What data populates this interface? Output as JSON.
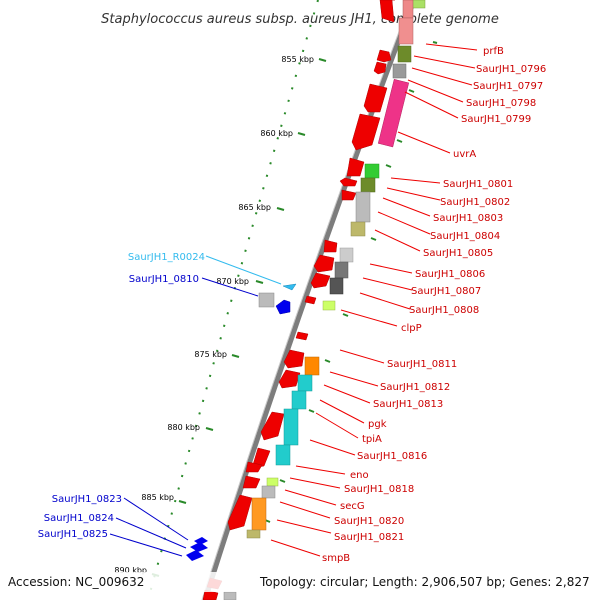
{
  "title": "Staphylococcus aureus subsp. aureus JH1, complete genome",
  "footer": {
    "accession": "Accession: NC_009632",
    "topology": "Topology: circular; Length: 2,906,507 bp; Genes: 2,827"
  },
  "colors": {
    "backbone": "#7a7a7a",
    "tick": "#2a8a2a",
    "forward_strand": "#ee0000",
    "reverse_strand": "#0000ee",
    "rna": "#33bbee",
    "forward_label_line": "#ee0000"
  },
  "scale_labels": [
    "855 kbp",
    "860 kbp",
    "865 kbp",
    "870 kbp",
    "875 kbp",
    "880 kbp",
    "885 kbp",
    "890 kbp"
  ],
  "right_labels": [
    "prfB",
    "SaurJH1_0796",
    "SaurJH1_0797",
    "SaurJH1_0798",
    "SaurJH1_0799",
    "uvrA",
    "SaurJH1_0801",
    "SaurJH1_0802",
    "SaurJH1_0803",
    "SaurJH1_0804",
    "SaurJH1_0805",
    "SaurJH1_0806",
    "SaurJH1_0807",
    "SaurJH1_0808",
    "clpP",
    "SaurJH1_0811",
    "SaurJH1_0812",
    "SaurJH1_0813",
    "pgk",
    "tpiA",
    "SaurJH1_0816",
    "eno",
    "SaurJH1_0818",
    "secG",
    "SaurJH1_0820",
    "SaurJH1_0821",
    "smpB"
  ],
  "left_labels": [
    "SaurJH1_R0024",
    "SaurJH1_0810",
    "SaurJH1_0823",
    "SaurJH1_0824",
    "SaurJH1_0825"
  ]
}
